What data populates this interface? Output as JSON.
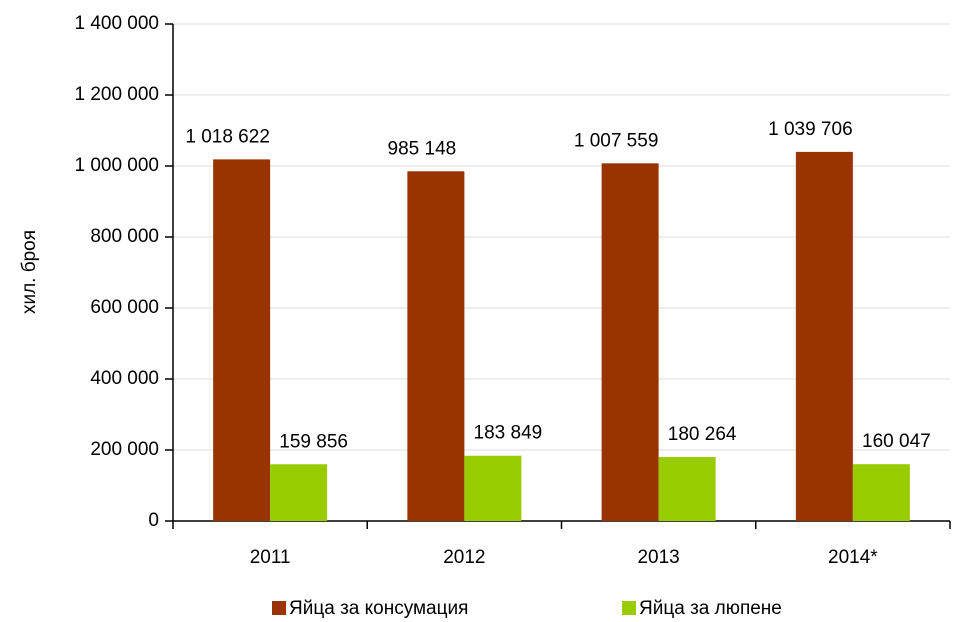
{
  "chart_data": {
    "type": "bar",
    "y_label": "хил. броя",
    "categories": [
      "2011",
      "2012",
      "2013",
      "2014*"
    ],
    "series": [
      {
        "name": "Яйца за консумация",
        "color": "#993300",
        "values": [
          1018622,
          985148,
          1007559,
          1039706
        ],
        "value_labels": [
          "1 018 622",
          "985 148",
          "1 007 559",
          "1 039 706"
        ]
      },
      {
        "name": "Яйца за люпене",
        "color": "#99cc00",
        "values": [
          159856,
          183849,
          180264,
          160047
        ],
        "value_labels": [
          "159 856",
          "183 849",
          "180 264",
          "160 047"
        ]
      }
    ],
    "ylim": [
      0,
      1400000
    ],
    "yticks": [
      0,
      {
        "value": 200000,
        "label": "200 000"
      },
      {
        "value": 400000,
        "label": "400 000"
      },
      {
        "value": 600000,
        "label": "600 000"
      },
      {
        "value": 800000,
        "label": "800 000"
      },
      {
        "value": 1000000,
        "label": "1 000 000"
      },
      {
        "value": 1200000,
        "label": "1 200 000"
      },
      {
        "value": 1400000,
        "label": "1 400 000"
      }
    ],
    "grid": true
  }
}
